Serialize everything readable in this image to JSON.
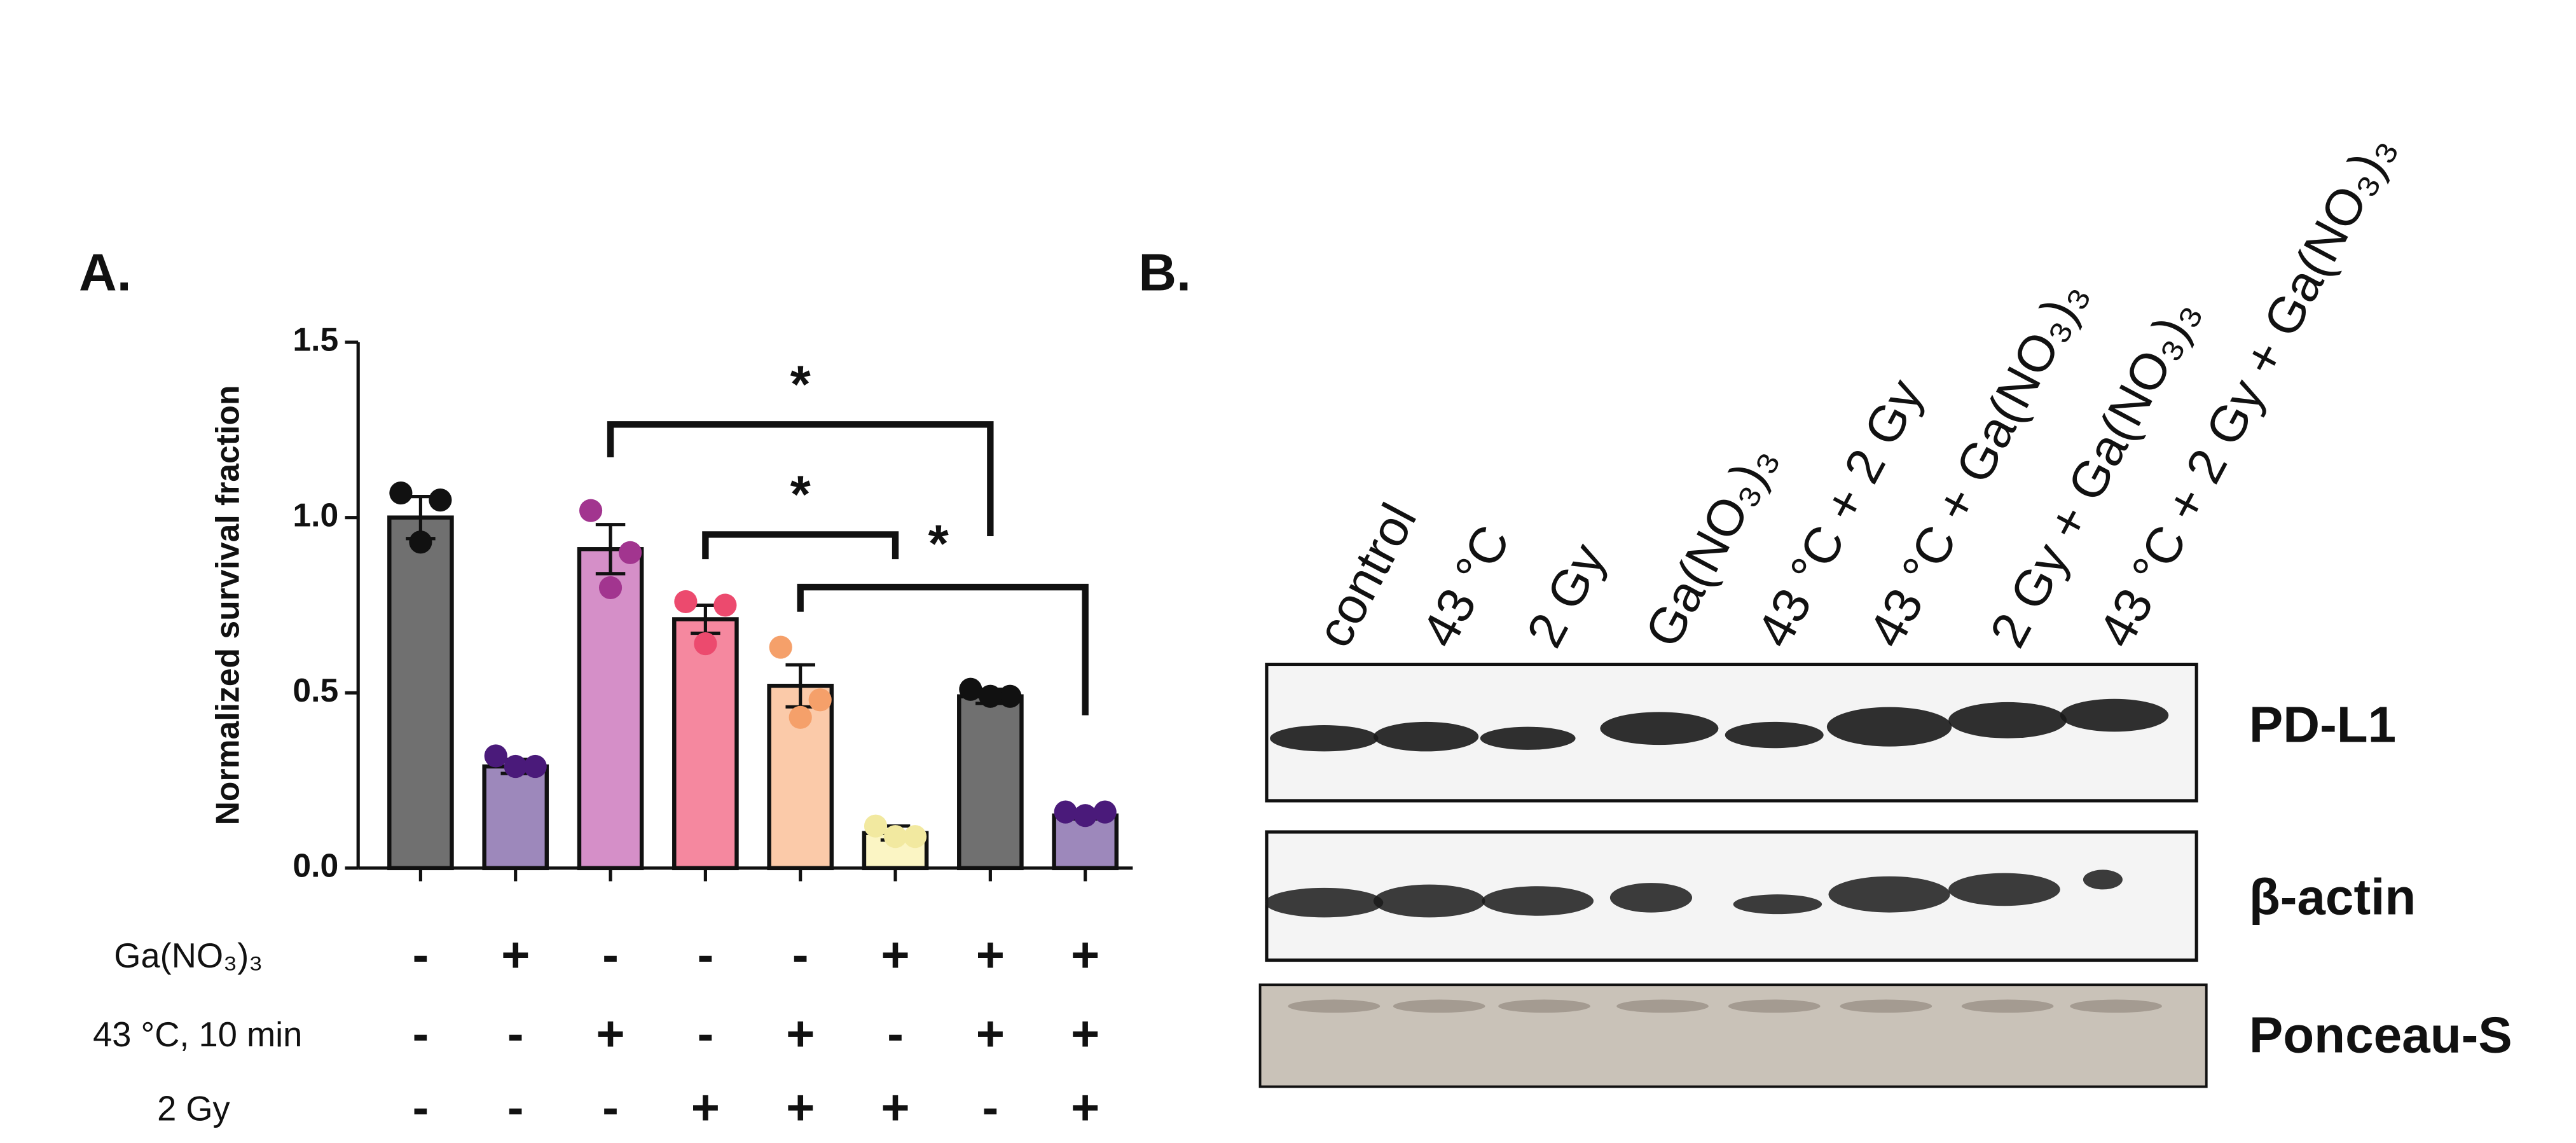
{
  "chart_data": {
    "type": "bar",
    "panel_label": "A.",
    "ylabel": "Normalized survival fraction",
    "categories": [
      null,
      null,
      null,
      null,
      null,
      null,
      null,
      null
    ],
    "values": [
      1.0,
      0.29,
      0.91,
      0.71,
      0.52,
      0.1,
      0.49,
      0.15
    ],
    "errors": [
      0.06,
      0.02,
      0.07,
      0.04,
      0.06,
      0.02,
      0.02,
      0.01
    ],
    "points": [
      [
        1.07,
        1.05,
        0.93
      ],
      [
        0.32,
        0.29,
        0.29
      ],
      [
        1.02,
        0.9,
        0.8
      ],
      [
        0.76,
        0.75,
        0.64
      ],
      [
        0.63,
        0.48,
        0.43
      ],
      [
        0.12,
        0.09,
        0.09
      ],
      [
        0.51,
        0.49,
        0.49
      ],
      [
        0.16,
        0.16,
        0.15
      ]
    ],
    "colors": [
      "#707070",
      "#9d88bb",
      "#d58fc8",
      "#f5889f",
      "#fbcaa9",
      "#fbf5c4",
      "#707070",
      "#9d88bb"
    ],
    "point_colors": [
      "#111111",
      "#4a1a7a",
      "#a2358f",
      "#ec4a6e",
      "#f5a06a",
      "#f2e9a0",
      "#111111",
      "#4a1a7a"
    ],
    "ylim": [
      0,
      1.5
    ],
    "yticks": [
      {
        "value": 0,
        "label": "0.0"
      },
      0.5,
      {
        "value": 1,
        "label": "1.0"
      },
      1.5
    ],
    "treatments": [
      {
        "name": "Ga(NO₃)₃",
        "signs": [
          "-",
          "+",
          "-",
          "-",
          "-",
          "+",
          "+",
          "+"
        ]
      },
      {
        "name": "43 °C, 10 min",
        "signs": [
          "-",
          "-",
          "+",
          "-",
          "+",
          "-",
          "+",
          "+"
        ]
      },
      {
        "name": "2  Gy",
        "signs": [
          "-",
          "-",
          "-",
          "+",
          "+",
          "+",
          "-",
          "+"
        ]
      }
    ],
    "comparisons": [
      {
        "from": 2,
        "to": 6,
        "label": "*"
      },
      {
        "from": 3,
        "to": 5,
        "label": "*"
      },
      {
        "from": 4,
        "to": 7,
        "label": "*"
      }
    ]
  },
  "blot": {
    "panel_label": "B.",
    "lanes": [
      "control",
      "43 °C",
      "2 Gy",
      "Ga(NO₃)₃",
      "43 °C + 2 Gy",
      "43 °C + Ga(NO₃)₃",
      "2 Gy + Ga(NO₃)₃",
      "43 °C + 2 Gy + Ga(NO₃)₃"
    ],
    "rows": [
      "PD-L1",
      "β-actin",
      "Ponceau-S"
    ]
  }
}
